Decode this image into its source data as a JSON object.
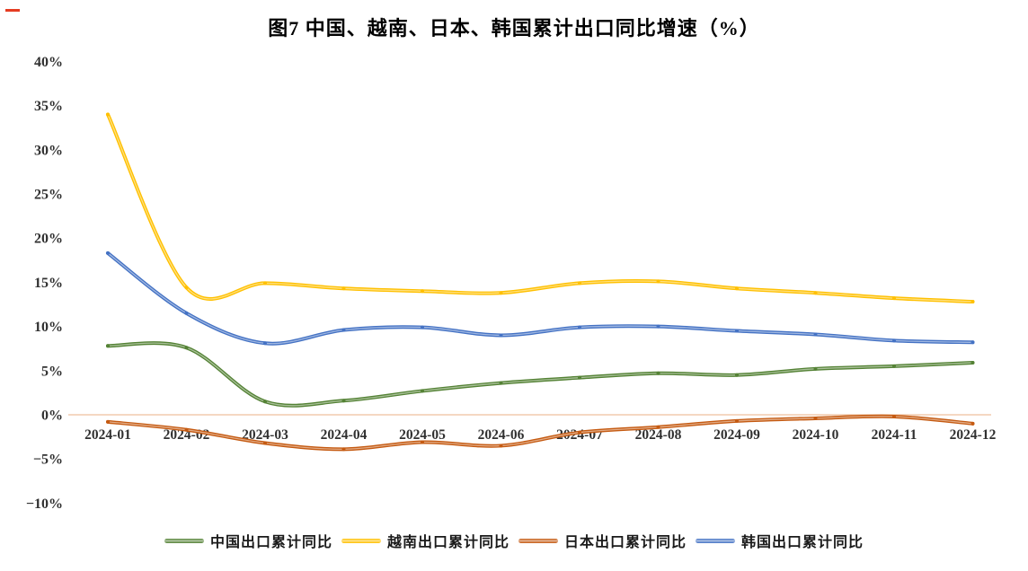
{
  "page": {
    "background": "#FFFFFF"
  },
  "decoration": {
    "red_corner_dash_color": "#E53C22"
  },
  "chart_data": {
    "type": "line",
    "title": "图7 中国、越南、日本、韩国累计出口同比增速（%）",
    "categories": [
      "2024-01",
      "2024-02",
      "2024-03",
      "2024-04",
      "2024-05",
      "2024-06",
      "2024-07",
      "2024-08",
      "2024-09",
      "2024-10",
      "2024-11",
      "2024-12"
    ],
    "series": [
      {
        "name": "中国出口累计同比",
        "color": "#548235",
        "values": [
          7.8,
          7.6,
          1.5,
          1.6,
          2.7,
          3.6,
          4.2,
          4.7,
          4.5,
          5.2,
          5.5,
          5.9
        ]
      },
      {
        "name": "越南出口累计同比",
        "color": "#FFC000",
        "values": [
          34.0,
          14.4,
          14.9,
          14.3,
          14.0,
          13.8,
          14.9,
          15.1,
          14.3,
          13.8,
          13.2,
          12.8
        ]
      },
      {
        "name": "日本出口累计同比",
        "color": "#C55A11",
        "values": [
          -0.8,
          -1.7,
          -3.2,
          -3.9,
          -3.1,
          -3.5,
          -2.0,
          -1.4,
          -0.7,
          -0.4,
          -0.2,
          -1.0
        ]
      },
      {
        "name": "韩国出口累计同比",
        "color": "#4472C4",
        "values": [
          18.3,
          11.5,
          8.1,
          9.6,
          9.9,
          9.0,
          9.9,
          10.0,
          9.5,
          9.1,
          8.4,
          8.2
        ]
      }
    ],
    "xlabel": "",
    "ylabel": "",
    "ylim": [
      -10,
      40
    ],
    "y_tick_step": 5,
    "y_tick_labels": [
      "40%",
      "35%",
      "30%",
      "25%",
      "20%",
      "15%",
      "10%",
      "5%",
      "0%",
      "−5%",
      "−10%"
    ],
    "grid": false,
    "zero_axis_line_color": "#F2CBAD",
    "line_style": "smooth",
    "legend_position": "bottom"
  }
}
